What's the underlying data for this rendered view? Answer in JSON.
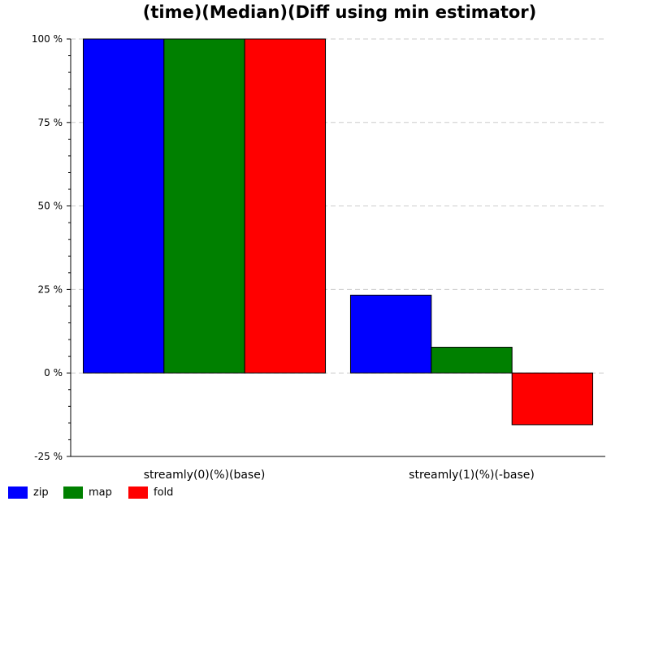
{
  "chart_data": {
    "type": "bar",
    "title": "(time)(Median)(Diff using min estimator)",
    "xlabel": "",
    "ylabel": "",
    "categories": [
      "streamly(0)(%)(base)",
      "streamly(1)(%)(-base)"
    ],
    "series": [
      {
        "name": "zip",
        "color": "#0000ff",
        "values": [
          100,
          23.3
        ]
      },
      {
        "name": "map",
        "color": "#008000",
        "values": [
          100,
          7.7
        ]
      },
      {
        "name": "fold",
        "color": "#ff0000",
        "values": [
          100,
          -15.5
        ]
      }
    ],
    "ylim": [
      -25,
      100
    ],
    "yticks": [
      -25,
      0,
      25,
      50,
      75,
      100
    ],
    "ytick_labels": [
      "-25 %",
      "0 %",
      "25 %",
      "50 %",
      "75 %",
      "100 %"
    ],
    "grid": true,
    "legend_position": "bottom-left"
  }
}
